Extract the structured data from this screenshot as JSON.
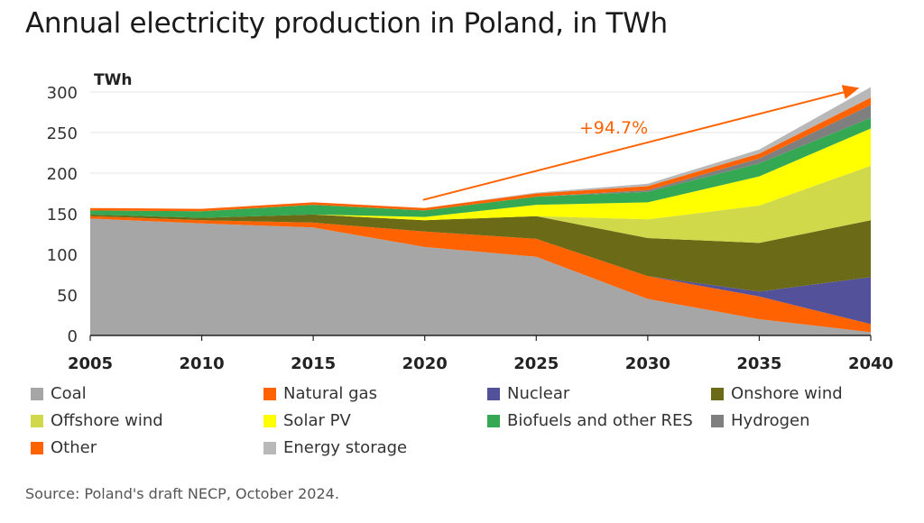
{
  "chart_data": {
    "type": "area",
    "title": "Annual electricity production in Poland, in TWh",
    "ylabel": "TWh",
    "xlabel": "",
    "x": [
      2005,
      2010,
      2015,
      2020,
      2025,
      2030,
      2035,
      2040
    ],
    "ylim": [
      0,
      300
    ],
    "yticks": [
      0,
      50,
      100,
      150,
      200,
      250,
      300
    ],
    "stacked": true,
    "grid": true,
    "series": [
      {
        "name": "Coal",
        "color": "#a6a6a6",
        "values": [
          144,
          138,
          133,
          109,
          97,
          45,
          20,
          4
        ]
      },
      {
        "name": "Natural gas",
        "color": "#ff6200",
        "values": [
          3,
          4,
          6,
          19,
          22,
          28,
          28,
          10
        ]
      },
      {
        "name": "Nuclear",
        "color": "#525199",
        "values": [
          0,
          0,
          0,
          0,
          0,
          0,
          6,
          58
        ]
      },
      {
        "name": "Onshore wind",
        "color": "#6b6b17",
        "values": [
          2,
          3,
          10,
          14,
          28,
          47,
          60,
          70
        ]
      },
      {
        "name": "Offshore wind",
        "color": "#d0d94a",
        "values": [
          0,
          0,
          0,
          0,
          0,
          23,
          46,
          67
        ]
      },
      {
        "name": "Solar PV",
        "color": "#ffff00",
        "values": [
          0,
          0,
          0,
          4,
          14,
          21,
          36,
          46
        ]
      },
      {
        "name": "Biofuels and other RES",
        "color": "#34a853",
        "values": [
          5,
          8,
          12,
          8,
          10,
          13,
          16,
          13
        ]
      },
      {
        "name": "Hydrogen",
        "color": "#7f7f7f",
        "values": [
          0,
          0,
          0,
          0,
          0,
          2,
          6,
          16
        ]
      },
      {
        "name": "Other",
        "color": "#ff6200",
        "values": [
          3,
          3,
          3,
          3,
          4,
          5,
          6,
          9
        ]
      },
      {
        "name": "Energy storage",
        "color": "#b8b8b8",
        "values": [
          0,
          0,
          0,
          0,
          1,
          3,
          5,
          13
        ]
      }
    ],
    "annotation": {
      "text": "+94.7%",
      "color": "#ff6200",
      "from_x": 2020,
      "from_y": 167,
      "to_x": 2039,
      "to_y": 305
    }
  },
  "legend": [
    {
      "label": "Coal",
      "color": "#a6a6a6"
    },
    {
      "label": "Natural gas",
      "color": "#ff6200"
    },
    {
      "label": "Nuclear",
      "color": "#525199"
    },
    {
      "label": "Onshore wind",
      "color": "#6b6b17"
    },
    {
      "label": "Offshore wind",
      "color": "#d0d94a"
    },
    {
      "label": "Solar PV",
      "color": "#ffff00"
    },
    {
      "label": "Biofuels and other RES",
      "color": "#34a853"
    },
    {
      "label": "Hydrogen",
      "color": "#7f7f7f"
    },
    {
      "label": "Other",
      "color": "#ff6200"
    },
    {
      "label": "Energy storage",
      "color": "#b8b8b8"
    }
  ],
  "source": "Source: Poland's draft NECP, October 2024."
}
